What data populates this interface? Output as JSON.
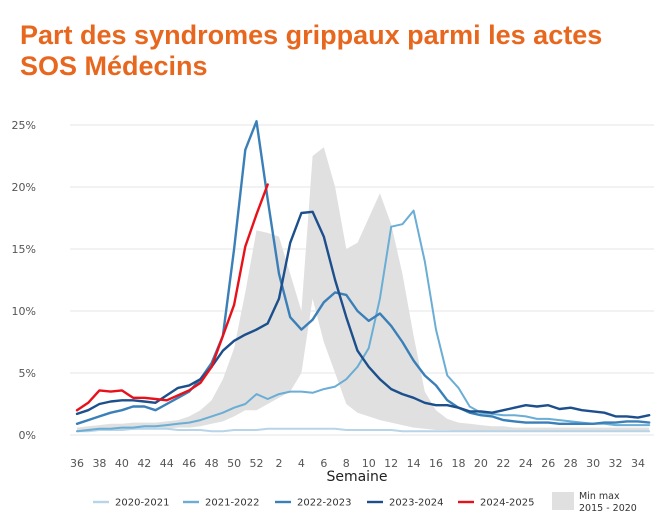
{
  "title_line1": "Part des syndromes grippaux parmi les actes",
  "title_line2": "SOS Médecins",
  "chart_data": {
    "type": "line",
    "xlabel": "Semaine",
    "ylabel": "",
    "y_ticks": [
      "0%",
      "5%",
      "10%",
      "15%",
      "20%",
      "25%"
    ],
    "ylim": [
      0,
      27
    ],
    "x_tick_labels": [
      "36",
      "38",
      "40",
      "42",
      "44",
      "46",
      "48",
      "50",
      "52",
      "2",
      "4",
      "6",
      "8",
      "10",
      "12",
      "14",
      "16",
      "18",
      "20",
      "22",
      "24",
      "26",
      "28",
      "30",
      "32",
      "34"
    ],
    "weeks": [
      "36",
      "37",
      "38",
      "39",
      "40",
      "41",
      "42",
      "43",
      "44",
      "45",
      "46",
      "47",
      "48",
      "49",
      "50",
      "51",
      "52",
      "1",
      "2",
      "3",
      "4",
      "5",
      "6",
      "7",
      "8",
      "9",
      "10",
      "11",
      "12",
      "13",
      "14",
      "15",
      "16",
      "17",
      "18",
      "19",
      "20",
      "21",
      "22",
      "23",
      "24",
      "25",
      "26",
      "27",
      "28",
      "29",
      "30",
      "31",
      "32",
      "33",
      "34",
      "35"
    ],
    "grid": true,
    "legend_position": "bottom",
    "band": {
      "name": "Min max\n2015 - 2020",
      "color": "#e0e0e0",
      "min": [
        0.3,
        0.4,
        0.4,
        0.4,
        0.4,
        0.4,
        0.5,
        0.5,
        0.5,
        0.6,
        0.6,
        0.7,
        0.9,
        1.1,
        1.5,
        2.0,
        2.0,
        2.5,
        3.0,
        3.5,
        5.0,
        11.0,
        7.5,
        5.0,
        2.5,
        1.8,
        1.5,
        1.2,
        1.0,
        0.8,
        0.6,
        0.5,
        0.4,
        0.4,
        0.3,
        0.3,
        0.3,
        0.3,
        0.3,
        0.3,
        0.3,
        0.3,
        0.3,
        0.3,
        0.3,
        0.3,
        0.3,
        0.3,
        0.3,
        0.3,
        0.3,
        0.3
      ],
      "max": [
        0.6,
        0.7,
        0.8,
        0.9,
        0.9,
        1.0,
        1.0,
        1.0,
        1.1,
        1.2,
        1.5,
        2.0,
        2.8,
        4.5,
        7.0,
        11.5,
        16.5,
        16.3,
        16.0,
        13.0,
        10.0,
        22.5,
        23.2,
        20.0,
        15.0,
        15.5,
        17.5,
        19.5,
        17.0,
        13.0,
        8.0,
        3.5,
        2.0,
        1.3,
        1.0,
        0.9,
        0.8,
        0.7,
        0.7,
        0.6,
        0.6,
        0.6,
        0.6,
        0.6,
        0.6,
        0.6,
        0.6,
        0.6,
        0.6,
        0.6,
        0.6,
        0.6
      ]
    },
    "series": [
      {
        "name": "2020-2021",
        "color": "#b7d4e8",
        "width": 2,
        "values": [
          0.3,
          0.3,
          0.4,
          0.4,
          0.4,
          0.5,
          0.5,
          0.5,
          0.5,
          0.4,
          0.4,
          0.4,
          0.3,
          0.3,
          0.4,
          0.4,
          0.4,
          0.5,
          0.5,
          0.5,
          0.5,
          0.5,
          0.5,
          0.5,
          0.4,
          0.4,
          0.4,
          0.4,
          0.4,
          0.3,
          0.3,
          0.3,
          0.3,
          0.3,
          0.3,
          0.3,
          0.3,
          0.3,
          0.3,
          0.3,
          0.3,
          0.3,
          0.3,
          0.3,
          0.3,
          0.3,
          0.3,
          0.3,
          0.3,
          0.3,
          0.3,
          0.3
        ]
      },
      {
        "name": "2021-2022",
        "color": "#6aadd5",
        "width": 2,
        "values": [
          0.3,
          0.4,
          0.5,
          0.5,
          0.6,
          0.6,
          0.7,
          0.7,
          0.8,
          0.9,
          1.0,
          1.2,
          1.5,
          1.8,
          2.2,
          2.5,
          3.3,
          2.9,
          3.3,
          3.5,
          3.5,
          3.4,
          3.7,
          3.9,
          4.5,
          5.5,
          7.0,
          11.0,
          16.8,
          17.0,
          18.1,
          14.0,
          8.5,
          4.8,
          3.8,
          2.3,
          1.8,
          1.7,
          1.6,
          1.6,
          1.5,
          1.3,
          1.3,
          1.2,
          1.1,
          1.0,
          0.9,
          0.9,
          0.8,
          0.8,
          0.8,
          0.8
        ]
      },
      {
        "name": "2022-2023",
        "color": "#3a7fb8",
        "width": 2.4,
        "values": [
          0.9,
          1.2,
          1.5,
          1.8,
          2.0,
          2.3,
          2.3,
          2.0,
          2.5,
          3.0,
          3.5,
          4.5,
          5.8,
          8.0,
          15.0,
          23.0,
          25.3,
          19.0,
          13.0,
          9.5,
          8.5,
          9.3,
          10.7,
          11.5,
          11.3,
          10.0,
          9.2,
          9.8,
          8.8,
          7.5,
          6.0,
          4.8,
          4.0,
          2.8,
          2.2,
          1.8,
          1.6,
          1.5,
          1.2,
          1.1,
          1.0,
          1.0,
          1.0,
          0.9,
          0.9,
          0.9,
          0.9,
          1.0,
          1.0,
          1.1,
          1.1,
          1.0
        ]
      },
      {
        "name": "2023-2024",
        "color": "#1c4f8c",
        "width": 2.4,
        "values": [
          1.7,
          2.0,
          2.5,
          2.7,
          2.8,
          2.8,
          2.7,
          2.6,
          3.2,
          3.8,
          4.0,
          4.5,
          5.5,
          6.8,
          7.6,
          8.1,
          8.5,
          9.0,
          11.0,
          15.5,
          17.9,
          18.0,
          16.0,
          12.5,
          9.5,
          6.8,
          5.5,
          4.5,
          3.7,
          3.3,
          3.0,
          2.6,
          2.4,
          2.4,
          2.2,
          1.9,
          1.9,
          1.8,
          2.0,
          2.2,
          2.4,
          2.3,
          2.4,
          2.1,
          2.2,
          2.0,
          1.9,
          1.8,
          1.5,
          1.5,
          1.4,
          1.6
        ]
      },
      {
        "name": "2024-2025",
        "color": "#e8111a",
        "width": 2.4,
        "values": [
          2.0,
          2.6,
          3.6,
          3.5,
          3.6,
          3.0,
          3.0,
          2.9,
          2.8,
          3.2,
          3.6,
          4.2,
          5.5,
          8.0,
          10.5,
          15.2,
          17.8,
          20.2
        ]
      }
    ]
  }
}
